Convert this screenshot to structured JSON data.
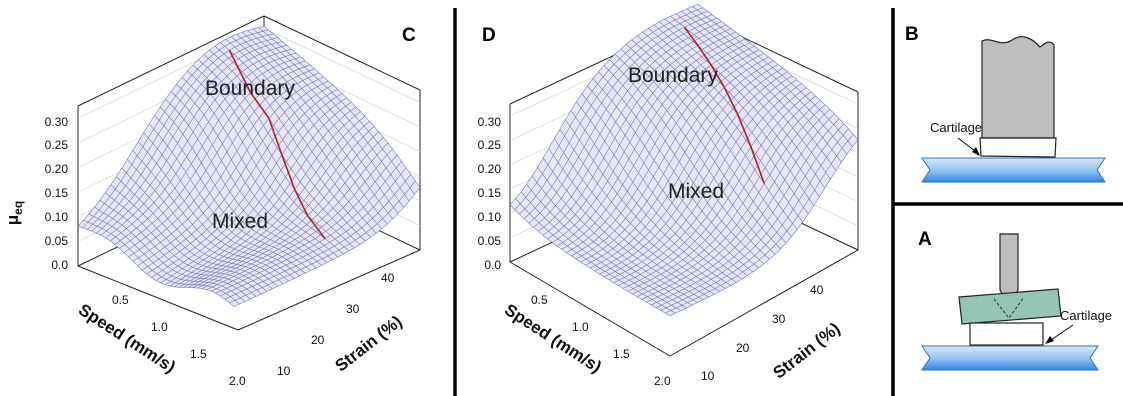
{
  "chart_data": [
    {
      "panel": "C",
      "type": "surface",
      "zlabel": "μeq",
      "xlabel": "Speed (mm/s)",
      "ylabel": "Strain (%)",
      "z_ticks": [
        "0.0",
        "0.05",
        "0.10",
        "0.15",
        "0.20",
        "0.25",
        "0.30"
      ],
      "x_ticks": [
        "0.5",
        "1.0",
        "1.5",
        "2.0"
      ],
      "y_ticks": [
        "10",
        "20",
        "30",
        "40"
      ],
      "regions": [
        "Boundary",
        "Mixed"
      ],
      "boundary_line_color": "#b22222",
      "mesh_color": "#5a5ab4"
    },
    {
      "panel": "D",
      "type": "surface",
      "xlabel": "Speed (mm/s)",
      "ylabel": "Strain (%)",
      "z_ticks": [
        "0.0",
        "0.05",
        "0.10",
        "0.15",
        "0.20",
        "0.25",
        "0.30"
      ],
      "x_ticks": [
        "0.5",
        "1.0",
        "1.5",
        "2.0"
      ],
      "y_ticks": [
        "10",
        "20",
        "30",
        "40"
      ],
      "regions": [
        "Boundary",
        "Mixed"
      ],
      "boundary_line_color": "#b22222",
      "mesh_color": "#5a5ab4"
    }
  ],
  "schematics": [
    {
      "panel": "B",
      "label": "Cartilage"
    },
    {
      "panel": "A",
      "label": "Cartilage"
    }
  ],
  "colors": {
    "surface_fill": "#e6e6f6",
    "mesh": "#5a5ab4",
    "boundary_line": "#b22222",
    "glass_light": "#dbe9fb",
    "glass_dark": "#2f86e6",
    "indenter_gray": "#bdbdbd",
    "cartilage_teal": "#94c4b6"
  }
}
